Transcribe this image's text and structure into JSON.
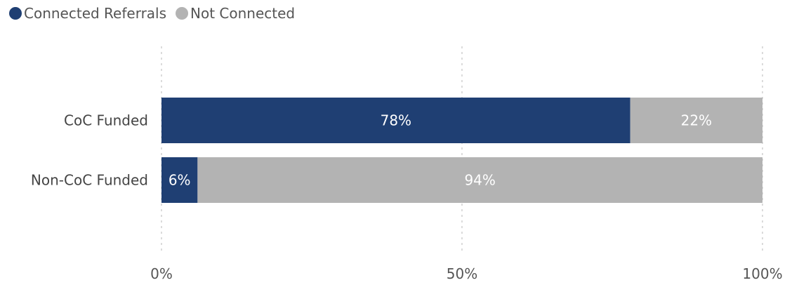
{
  "chart_data": {
    "type": "bar",
    "orientation": "horizontal",
    "stacked": true,
    "categories": [
      "CoC Funded",
      "Non-CoC Funded"
    ],
    "series": [
      {
        "name": "Connected Referrals",
        "values": [
          78,
          6
        ],
        "labels": [
          "78%",
          "6%"
        ],
        "color": "#1f3f73"
      },
      {
        "name": "Not Connected",
        "values": [
          22,
          94
        ],
        "labels": [
          "22%",
          "94%"
        ],
        "color": "#b3b3b3"
      }
    ],
    "xlim": [
      0,
      100
    ],
    "xticks": [
      0,
      50,
      100
    ],
    "xtick_labels": [
      "0%",
      "50%",
      "100%"
    ],
    "grid": true,
    "legend": "top-left"
  }
}
